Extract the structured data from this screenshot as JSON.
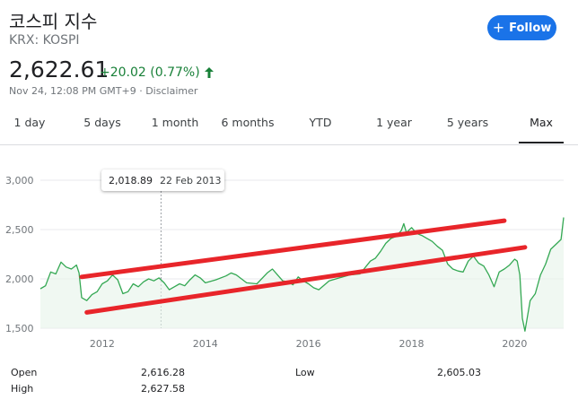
{
  "header": {
    "title": "코스피 지수",
    "ticker": "KRX: KOSPI",
    "follow_label": "Follow",
    "price": "2,622.61",
    "change": "+20.02 (0.77%)",
    "timestamp": "Nov 24, 12:08 PM GMT+9 · Disclaimer",
    "up_color": "#188038",
    "accent": "#1a73e8"
  },
  "tabs": [
    {
      "label": "1 day",
      "active": false
    },
    {
      "label": "5 days",
      "active": false
    },
    {
      "label": "1 month",
      "active": false
    },
    {
      "label": "6 months",
      "active": false
    },
    {
      "label": "YTD",
      "active": false
    },
    {
      "label": "1 year",
      "active": false
    },
    {
      "label": "5 years",
      "active": false
    },
    {
      "label": "Max",
      "active": true
    }
  ],
  "tooltip": {
    "value": "2,018.89",
    "date": "22 Feb 2013"
  },
  "chart_data": {
    "type": "line",
    "y_ticks": [
      "3,000",
      "2,500",
      "2,000",
      "1,500"
    ],
    "x_ticks": [
      "2012",
      "2014",
      "2016",
      "2018",
      "2020"
    ],
    "ylim": [
      1500,
      3000
    ],
    "xlim": [
      2010.8,
      2020.95
    ],
    "grid": true,
    "line_color": "#34a853",
    "series": [
      {
        "x": [
          2010.8,
          2010.9,
          2011.0,
          2011.1,
          2011.2,
          2011.3,
          2011.4,
          2011.5,
          2011.55,
          2011.6,
          2011.7,
          2011.8,
          2011.9,
          2012.0,
          2012.1,
          2012.2,
          2012.3,
          2012.4,
          2012.5,
          2012.6,
          2012.7,
          2012.8,
          2012.9,
          2013.0,
          2013.1,
          2013.2,
          2013.3,
          2013.4,
          2013.5,
          2013.6,
          2013.7,
          2013.8,
          2013.9,
          2014.0,
          2014.2,
          2014.4,
          2014.5,
          2014.6,
          2014.8,
          2015.0,
          2015.2,
          2015.3,
          2015.4,
          2015.5,
          2015.6,
          2015.7,
          2015.8,
          2015.9,
          2016.0,
          2016.1,
          2016.2,
          2016.4,
          2016.6,
          2016.8,
          2017.0,
          2017.2,
          2017.3,
          2017.4,
          2017.5,
          2017.6,
          2017.7,
          2017.8,
          2017.85,
          2017.9,
          2018.0,
          2018.1,
          2018.2,
          2018.3,
          2018.4,
          2018.5,
          2018.6,
          2018.7,
          2018.8,
          2018.9,
          2019.0,
          2019.1,
          2019.2,
          2019.3,
          2019.4,
          2019.5,
          2019.6,
          2019.7,
          2019.8,
          2019.9,
          2020.0,
          2020.05,
          2020.1,
          2020.15,
          2020.2,
          2020.3,
          2020.4,
          2020.5,
          2020.6,
          2020.7,
          2020.8,
          2020.9,
          2020.95
        ],
        "y": [
          1900,
          1930,
          2070,
          2050,
          2170,
          2120,
          2100,
          2140,
          2060,
          1810,
          1780,
          1840,
          1870,
          1950,
          1980,
          2040,
          1990,
          1850,
          1870,
          1950,
          1920,
          1970,
          2000,
          1980,
          2010,
          1960,
          1890,
          1920,
          1950,
          1930,
          1990,
          2040,
          2010,
          1960,
          1990,
          2030,
          2060,
          2040,
          1960,
          1950,
          2060,
          2100,
          2040,
          1980,
          1970,
          1940,
          2020,
          1980,
          1950,
          1910,
          1890,
          1980,
          2010,
          2040,
          2050,
          2180,
          2210,
          2280,
          2360,
          2410,
          2430,
          2490,
          2560,
          2470,
          2520,
          2460,
          2440,
          2410,
          2380,
          2330,
          2290,
          2150,
          2100,
          2080,
          2070,
          2180,
          2230,
          2160,
          2130,
          2040,
          1920,
          2070,
          2100,
          2140,
          2200,
          2180,
          2040,
          1600,
          1470,
          1780,
          1850,
          2040,
          2150,
          2300,
          2350,
          2400,
          2622.61
        ]
      }
    ],
    "annotations": [
      {
        "type": "trend-line",
        "color": "#e8252a",
        "x": [
          2011.6,
          2019.8
        ],
        "y": [
          2020,
          2590
        ]
      },
      {
        "type": "trend-line",
        "color": "#e8252a",
        "x": [
          2011.7,
          2020.2
        ],
        "y": [
          1660,
          2320
        ]
      }
    ]
  },
  "stats": {
    "open_label": "Open",
    "open_value": "2,616.28",
    "high_label": "High",
    "high_value": "2,627.58",
    "low_label": "Low",
    "low_value": "2,605.03"
  }
}
